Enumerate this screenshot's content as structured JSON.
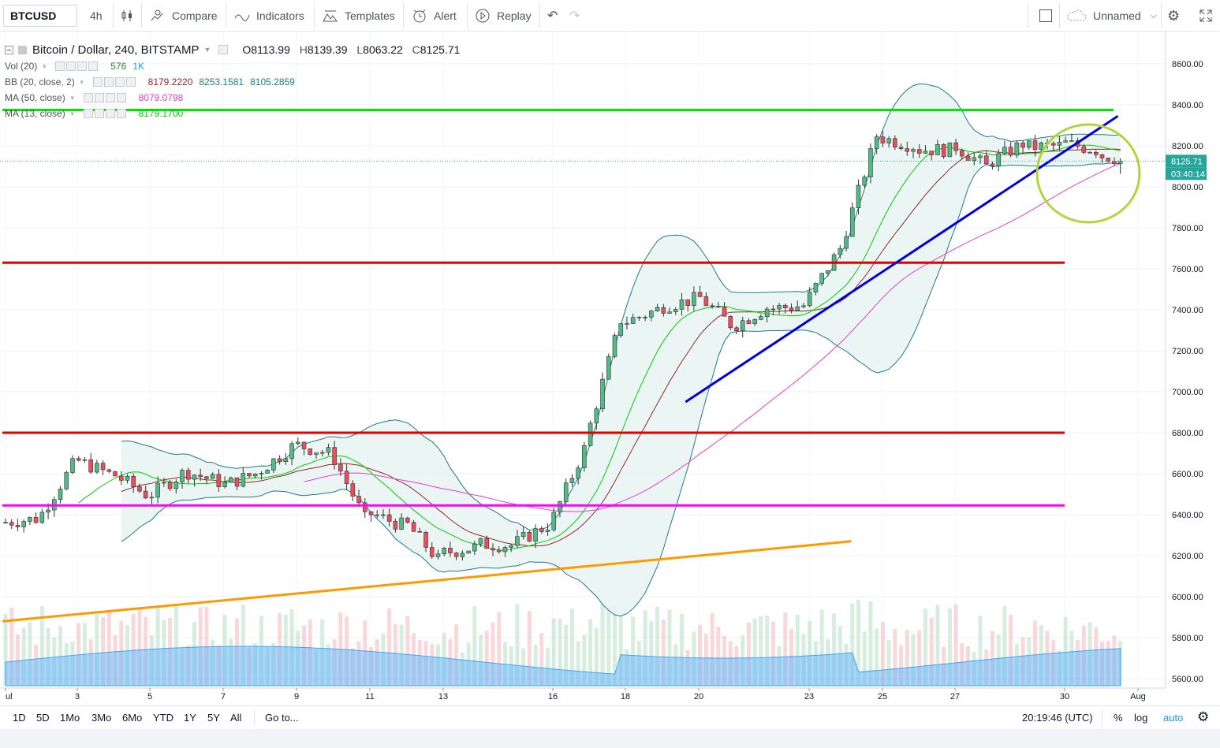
{
  "toolbar": {
    "symbol": "BTCUSD",
    "interval": "4h",
    "compare": "Compare",
    "indicators": "Indicators",
    "templates": "Templates",
    "alert": "Alert",
    "replay": "Replay",
    "layout_name": "Unnamed"
  },
  "legend": {
    "title": "Bitcoin / Dollar, 240, BITSTAMP",
    "o_label": "O",
    "o_value": "8113.99",
    "h_label": "H",
    "h_value": "8139.39",
    "l_label": "L",
    "l_value": "8063.22",
    "c_label": "C",
    "c_value": "8125.71",
    "vol_name": "Vol (20)",
    "vol_v1": "576",
    "vol_v2": "1K",
    "bb_name": "BB (20, close, 2)",
    "bb_v1": "8179.2220",
    "bb_v2": "8253.1581",
    "bb_v3": "8105.2859",
    "ma50_name": "MA (50, close)",
    "ma50_v": "8079.0798",
    "ma13_name": "MA (13, close)",
    "ma13_v": "8179.1700"
  },
  "price_axis": {
    "labels": [
      "8600.00",
      "8400.00",
      "8200.00",
      "8000.00",
      "7800.00",
      "7600.00",
      "7400.00",
      "7200.00",
      "7000.00",
      "6800.00",
      "6600.00",
      "6400.00",
      "6200.00",
      "6000.00",
      "5800.00",
      "5600.00"
    ],
    "current_price": "8125.71",
    "countdown": "03:40:14"
  },
  "time_axis": {
    "labels": [
      "ul",
      "3",
      "5",
      "7",
      "9",
      "11",
      "13",
      "16",
      "18",
      "20",
      "23",
      "25",
      "27",
      "30",
      "Aug"
    ]
  },
  "bottom": {
    "ranges": [
      "1D",
      "5D",
      "1Mo",
      "3Mo",
      "6Mo",
      "YTD",
      "1Y",
      "5Y",
      "All"
    ],
    "goto": "Go to...",
    "clock": "20:19:46 (UTC)",
    "pct": "%",
    "log": "log",
    "auto": "auto"
  },
  "colors": {
    "up": "#53b987",
    "down": "#eb4d5c",
    "resistance_green": "#00e600",
    "red_levels": "#e00000",
    "magenta_level": "#ff00ff",
    "trend_blue": "#0000dd",
    "trend_orange": "#ff9900",
    "circle": "#b5d33b",
    "bb_band": "#1e7a8a",
    "ma13": "#00cc00",
    "ma50": "#e040d0",
    "bb_basis": "#8b2a2a"
  },
  "chart_data": {
    "type": "candlestick",
    "symbol": "Bitcoin / Dollar",
    "interval": "240",
    "exchange": "BITSTAMP",
    "ylim": [
      5550,
      8700
    ],
    "last": {
      "open": 8113.99,
      "high": 8139.39,
      "low": 8063.22,
      "close": 8125.71
    },
    "horizontal_levels": [
      {
        "price": 8375,
        "color": "green"
      },
      {
        "price": 7630,
        "color": "red"
      },
      {
        "price": 6800,
        "color": "red"
      },
      {
        "price": 6445,
        "color": "magenta"
      }
    ],
    "trendlines": [
      {
        "color": "blue",
        "from": {
          "date": "Jul 19",
          "price": 6950
        },
        "to": {
          "date": "Jul 31",
          "price": 8345
        }
      },
      {
        "color": "orange",
        "from": {
          "date": "Jul 1",
          "price": 5880
        },
        "to": {
          "date": "Jul 25",
          "price": 6270
        }
      }
    ],
    "closes_by_day": [
      {
        "date": "Jul 1",
        "close": 6380
      },
      {
        "date": "Jul 2",
        "close": 6640
      },
      {
        "date": "Jul 3",
        "close": 6600
      },
      {
        "date": "Jul 4",
        "close": 6500
      },
      {
        "date": "Jul 5",
        "close": 6600
      },
      {
        "date": "Jul 6",
        "close": 6560
      },
      {
        "date": "Jul 7",
        "close": 6600
      },
      {
        "date": "Jul 8",
        "close": 6730
      },
      {
        "date": "Jul 9",
        "close": 6700
      },
      {
        "date": "Jul 10",
        "close": 6380
      },
      {
        "date": "Jul 11",
        "close": 6350
      },
      {
        "date": "Jul 12",
        "close": 6180
      },
      {
        "date": "Jul 13",
        "close": 6240
      },
      {
        "date": "Jul 14",
        "close": 6250
      },
      {
        "date": "Jul 15",
        "close": 6350
      },
      {
        "date": "Jul 16",
        "close": 6720
      },
      {
        "date": "Jul 17",
        "close": 7350
      },
      {
        "date": "Jul 18",
        "close": 7400
      },
      {
        "date": "Jul 19",
        "close": 7450
      },
      {
        "date": "Jul 20",
        "close": 7330
      },
      {
        "date": "Jul 21",
        "close": 7410
      },
      {
        "date": "Jul 22",
        "close": 7420
      },
      {
        "date": "Jul 23",
        "close": 7700
      },
      {
        "date": "Jul 24",
        "close": 8250
      },
      {
        "date": "Jul 25",
        "close": 8200
      },
      {
        "date": "Jul 26",
        "close": 8180
      },
      {
        "date": "Jul 27",
        "close": 8100
      },
      {
        "date": "Jul 28",
        "close": 8210
      },
      {
        "date": "Jul 29",
        "close": 8200
      },
      {
        "date": "Jul 30",
        "close": 8180
      },
      {
        "date": "Jul 31",
        "close": 8125.71
      }
    ]
  }
}
